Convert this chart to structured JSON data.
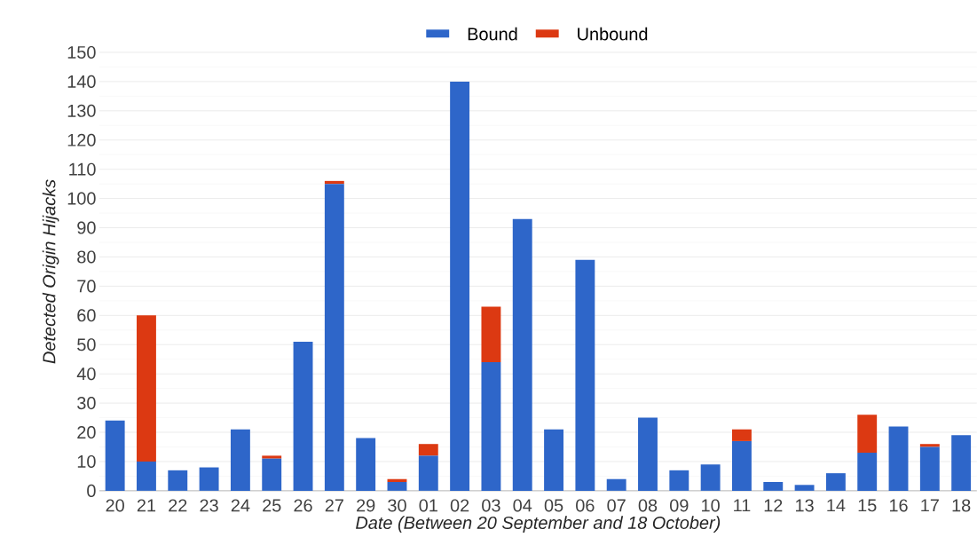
{
  "chart_data": {
    "type": "bar",
    "stacked": true,
    "xlabel": "Date (Between 20 September and 18 October)",
    "ylabel": "Detected Origin Hijacks",
    "categories": [
      "20",
      "21",
      "22",
      "23",
      "24",
      "25",
      "26",
      "27",
      "29",
      "30",
      "01",
      "02",
      "03",
      "04",
      "05",
      "06",
      "07",
      "08",
      "09",
      "10",
      "11",
      "12",
      "13",
      "14",
      "15",
      "16",
      "17",
      "18"
    ],
    "series": [
      {
        "name": "Bound",
        "color": "#2e66c9",
        "values": [
          24,
          10,
          7,
          8,
          21,
          11,
          51,
          105,
          18,
          3,
          12,
          140,
          44,
          93,
          21,
          79,
          4,
          25,
          7,
          9,
          17,
          3,
          2,
          6,
          13,
          22,
          15,
          19
        ]
      },
      {
        "name": "Unbound",
        "color": "#dc3912",
        "values": [
          0,
          50,
          0,
          0,
          0,
          1,
          0,
          1,
          0,
          1,
          4,
          0,
          19,
          0,
          0,
          0,
          0,
          0,
          0,
          0,
          4,
          0,
          0,
          0,
          13,
          0,
          1,
          0
        ]
      }
    ],
    "ylim": [
      0,
      150
    ],
    "yticks": [
      0,
      10,
      20,
      30,
      40,
      50,
      60,
      70,
      80,
      90,
      100,
      110,
      120,
      130,
      140,
      150
    ],
    "grid": "y",
    "legend": "top"
  }
}
